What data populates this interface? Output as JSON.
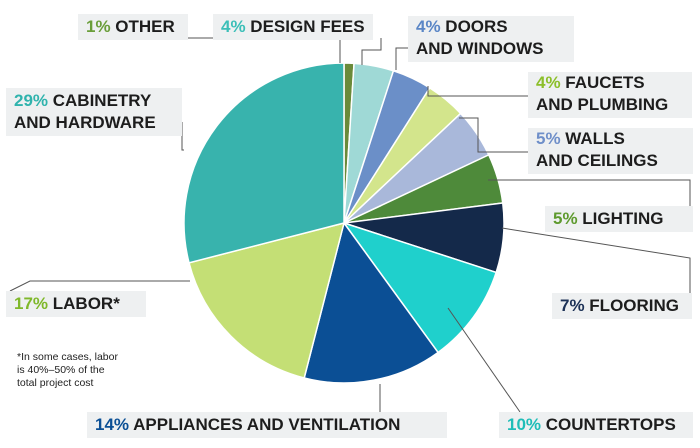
{
  "chart_data": {
    "type": "pie",
    "start": "top, clockwise",
    "slices": [
      {
        "pct": "1%",
        "value": 1,
        "label": [
          "OTHER"
        ],
        "color": "#6a8a3a",
        "pct_color": "#6a9e3a"
      },
      {
        "pct": "4%",
        "value": 4,
        "label": [
          "DESIGN FEES"
        ],
        "color": "#9fd9d6",
        "pct_color": "#3bbfb8"
      },
      {
        "pct": "4%",
        "value": 4,
        "label": [
          "DOORS",
          "AND WINDOWS"
        ],
        "color": "#6b8fc8",
        "pct_color": "#5a86c6"
      },
      {
        "pct": "4%",
        "value": 4,
        "label": [
          "FAUCETS",
          "AND PLUMBING"
        ],
        "color": "#d3e58c",
        "pct_color": "#8cbf2a"
      },
      {
        "pct": "5%",
        "value": 5,
        "label": [
          "WALLS",
          "AND CEILINGS"
        ],
        "color": "#a9b8da",
        "pct_color": "#6f8fc9"
      },
      {
        "pct": "5%",
        "value": 5,
        "label": [
          "LIGHTING"
        ],
        "color": "#4e8a3a",
        "pct_color": "#5e9a2e"
      },
      {
        "pct": "7%",
        "value": 7,
        "label": [
          "FLOORING"
        ],
        "color": "#14294a",
        "pct_color": "#1d3257"
      },
      {
        "pct": "10%",
        "value": 10,
        "label": [
          "COUNTERTOPS"
        ],
        "color": "#1fd0cc",
        "pct_color": "#1fbdb8"
      },
      {
        "pct": "14%",
        "value": 14,
        "label": [
          "APPLIANCES AND VENTILATION"
        ],
        "color": "#0b4f95",
        "pct_color": "#0b4f95"
      },
      {
        "pct": "17%",
        "value": 17,
        "label": [
          "LABOR*"
        ],
        "color": "#c4df75",
        "pct_color": "#7fb82a"
      },
      {
        "pct": "29%",
        "value": 29,
        "label": [
          "CABINETRY",
          "AND HARDWARE"
        ],
        "color": "#38b3ad",
        "pct_color": "#2fb3ad"
      }
    ],
    "footnote": [
      "*In some cases, labor",
      "is 40%–50% of the",
      "total project cost"
    ]
  }
}
